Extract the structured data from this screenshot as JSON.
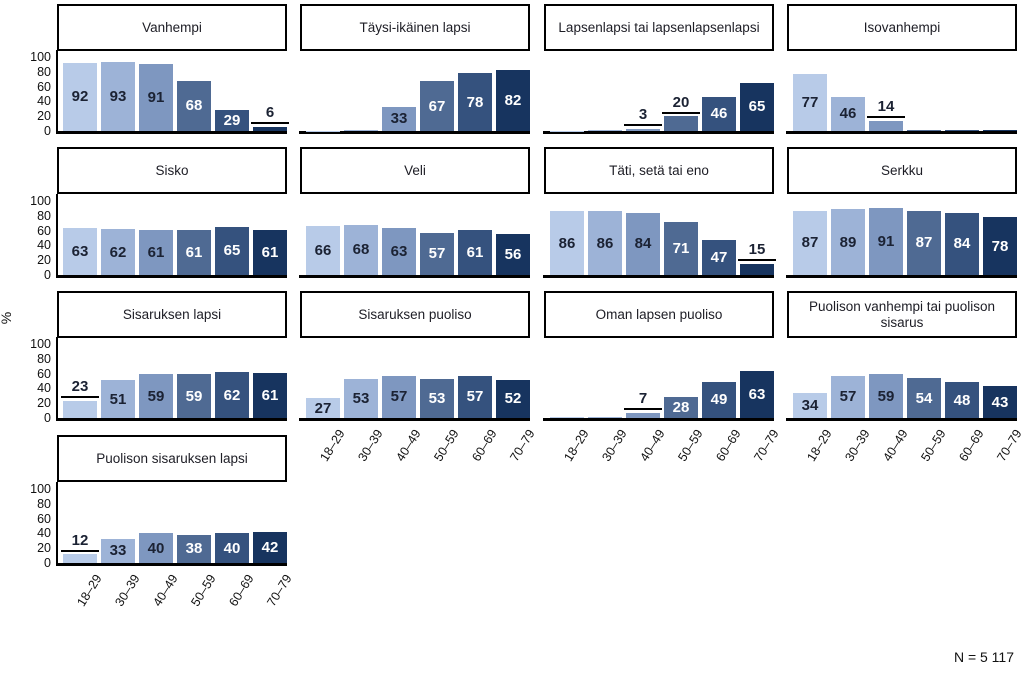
{
  "figure": {
    "ylabel": "%",
    "note": "N = 5 117"
  },
  "chart_data": {
    "type": "bar",
    "unit": "%",
    "title": "",
    "xlabel": "",
    "ylabel": "%",
    "note": "N = 5 117",
    "categories": [
      "18–29",
      "30–39",
      "40–49",
      "50–59",
      "60–69",
      "70–79"
    ],
    "ylim": [
      0,
      100
    ],
    "yticks": [
      0,
      20,
      40,
      60,
      80,
      100
    ],
    "grid": false,
    "legend": "none",
    "palette": [
      "#b8cbe8",
      "#9db3d7",
      "#7e97c0",
      "#4f6a93",
      "#35527e",
      "#17345f"
    ],
    "label_dark_color": "#1b2233",
    "label_light_color": "#ffffff",
    "panels": [
      {
        "title": "Vanhempi",
        "values": [
          92,
          93,
          91,
          68,
          29,
          6
        ],
        "labels": [
          "92",
          "93",
          "91",
          "68",
          "29",
          "6"
        ]
      },
      {
        "title": "Täysi-ikäinen lapsi",
        "values": [
          0.5,
          2,
          33,
          67,
          78,
          82
        ],
        "labels": [
          "",
          "",
          "33",
          "67",
          "78",
          "82"
        ]
      },
      {
        "title": "Lapsenlapsi tai lapsenlapsenlapsi",
        "values": [
          0.5,
          1,
          3,
          20,
          46,
          65
        ],
        "labels": [
          "",
          "",
          "3",
          "20",
          "46",
          "65"
        ]
      },
      {
        "title": "Isovanhempi",
        "values": [
          77,
          46,
          14,
          2,
          0.7,
          0.7
        ],
        "labels": [
          "77",
          "46",
          "14",
          "",
          "",
          ""
        ]
      },
      {
        "title": "Sisko",
        "values": [
          63,
          62,
          61,
          61,
          65,
          61
        ],
        "labels": [
          "63",
          "62",
          "61",
          "61",
          "65",
          "61"
        ]
      },
      {
        "title": "Veli",
        "values": [
          66,
          68,
          63,
          57,
          61,
          56
        ],
        "labels": [
          "66",
          "68",
          "63",
          "57",
          "61",
          "56"
        ]
      },
      {
        "title": "Täti, setä tai eno",
        "values": [
          86,
          86,
          84,
          71,
          47,
          15
        ],
        "labels": [
          "86",
          "86",
          "84",
          "71",
          "47",
          "15"
        ]
      },
      {
        "title": "Serkku",
        "values": [
          87,
          89,
          91,
          87,
          84,
          78
        ],
        "labels": [
          "87",
          "89",
          "91",
          "87",
          "84",
          "78"
        ]
      },
      {
        "title": "Sisaruksen lapsi",
        "values": [
          23,
          51,
          59,
          59,
          62,
          61
        ],
        "labels": [
          "23",
          "51",
          "59",
          "59",
          "62",
          "61"
        ]
      },
      {
        "title": "Sisaruksen puoliso",
        "values": [
          27,
          53,
          57,
          53,
          57,
          52
        ],
        "labels": [
          "27",
          "53",
          "57",
          "53",
          "57",
          "52"
        ]
      },
      {
        "title": "Oman lapsen puoliso",
        "values": [
          0.7,
          1,
          7,
          28,
          49,
          63
        ],
        "labels": [
          "",
          "",
          "7",
          "28",
          "49",
          "63"
        ]
      },
      {
        "title": "Puolison vanhempi tai puolison sisarus",
        "values": [
          34,
          57,
          59,
          54,
          48,
          43
        ],
        "labels": [
          "34",
          "57",
          "59",
          "54",
          "48",
          "43"
        ]
      },
      {
        "title": "Puolison sisaruksen lapsi",
        "values": [
          12,
          33,
          40,
          38,
          40,
          42
        ],
        "labels": [
          "12",
          "33",
          "40",
          "38",
          "40",
          "42"
        ]
      }
    ]
  }
}
